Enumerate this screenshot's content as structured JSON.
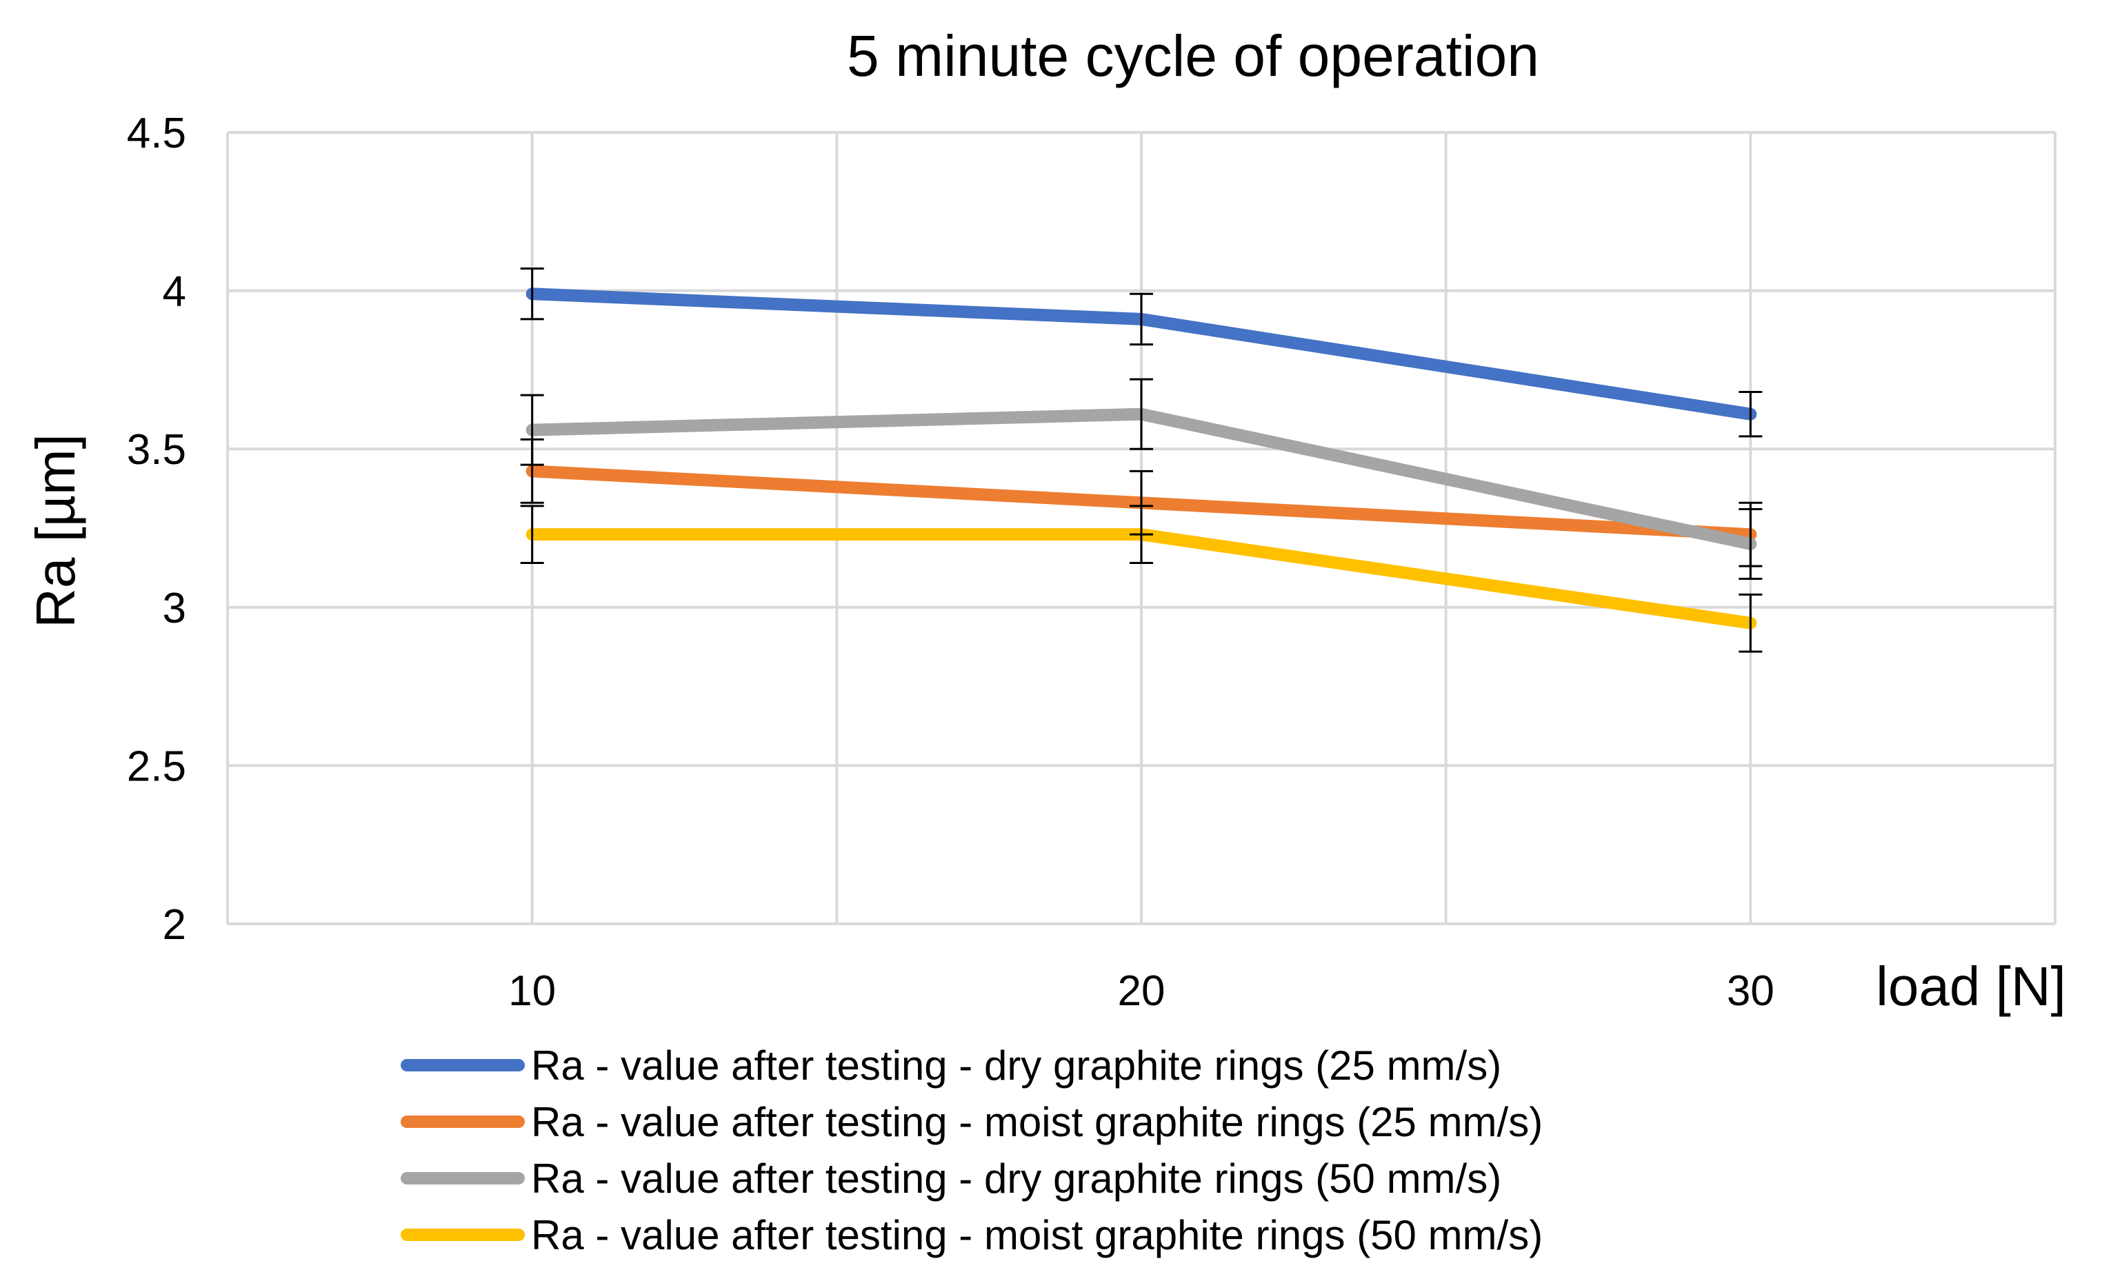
{
  "chart_data": {
    "type": "line",
    "title": "5 minute cycle of operation",
    "xlabel": "load [N]",
    "ylabel": "Ra [µm]",
    "x": [
      10,
      20,
      30
    ],
    "x_tick_labels": [
      "10",
      "20",
      "30"
    ],
    "xlim": [
      5,
      35
    ],
    "ylim": [
      2,
      4.5
    ],
    "y_ticks": [
      2,
      2.5,
      3,
      3.5,
      4,
      4.5
    ],
    "y_tick_labels": [
      "2",
      "2.5",
      "3",
      "3.5",
      "4",
      "4.5"
    ],
    "grid": true,
    "legend_position": "bottom",
    "series": [
      {
        "name": "Ra - value after testing - dry graphite rings (25 mm/s)",
        "color": "#4472C4",
        "values": [
          3.99,
          3.91,
          3.61
        ],
        "errors": [
          0.08,
          0.08,
          0.07
        ]
      },
      {
        "name": "Ra - value after testing - moist graphite rings (25 mm/s)",
        "color": "#ED7D31",
        "values": [
          3.43,
          3.33,
          3.23
        ],
        "errors": [
          0.1,
          0.1,
          0.1
        ]
      },
      {
        "name": "Ra - value after testing - dry graphite rings (50 mm/s)",
        "color": "#A5A5A5",
        "values": [
          3.56,
          3.61,
          3.2
        ],
        "errors": [
          0.11,
          0.11,
          0.11
        ]
      },
      {
        "name": "Ra - value after testing - moist graphite rings (50 mm/s)",
        "color": "#FFC000",
        "values": [
          3.23,
          3.23,
          2.95
        ],
        "errors": [
          0.09,
          0.09,
          0.09
        ]
      }
    ]
  }
}
